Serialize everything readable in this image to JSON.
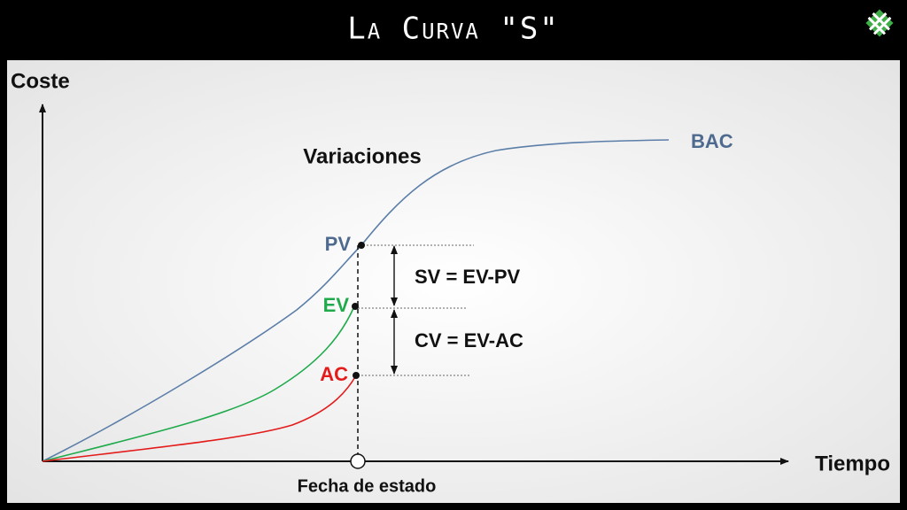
{
  "header": {
    "title": "La Curva \"S\""
  },
  "axes": {
    "y_label": "Coste",
    "x_label": "Tiempo",
    "status_date": "Fecha de estado"
  },
  "labels": {
    "heading": "Variaciones",
    "bac": "BAC",
    "pv": "PV",
    "ev": "EV",
    "ac": "AC",
    "sv": "SV = EV-PV",
    "cv": "CV = EV-AC"
  }
}
